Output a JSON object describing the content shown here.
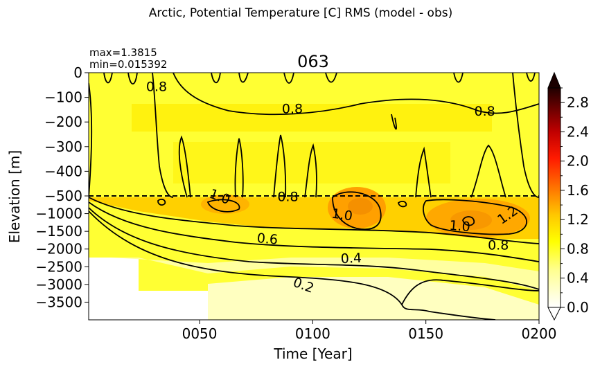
{
  "suptitle": "Arctic, Potential Temperature [C] RMS (model - obs)",
  "stats": {
    "max": "max=1.3815",
    "min": "min=0.015392"
  },
  "chart_data": {
    "type": "heatmap",
    "title": "063",
    "xlabel": "Time [Year]",
    "ylabel": "Elevation [m]",
    "xlim": [
      1,
      200
    ],
    "x_ticks": [
      "0050",
      "0100",
      "0150",
      "0200"
    ],
    "x_tick_values": [
      50,
      100,
      150,
      200
    ],
    "y_ticks_upper": [
      "0",
      "−100",
      "−200",
      "−300",
      "−400",
      "−500"
    ],
    "y_tick_values_upper": [
      0,
      -100,
      -200,
      -300,
      -400,
      -500
    ],
    "y_ticks_lower": [
      "−1000",
      "−1500",
      "−2000",
      "−2500",
      "−3000",
      "−3500"
    ],
    "y_tick_values_lower": [
      -1000,
      -1500,
      -2000,
      -2500,
      -3000,
      -3500
    ],
    "split_depth": -500,
    "colorbar": {
      "ticks": [
        "0.0",
        "0.4",
        "0.8",
        "1.2",
        "1.6",
        "2.0",
        "2.4",
        "2.8"
      ],
      "tick_values": [
        0.0,
        0.4,
        0.8,
        1.2,
        1.6,
        2.0,
        2.4,
        2.8
      ],
      "range": [
        0,
        3.0
      ],
      "extend": "both",
      "colormap": "hot_r"
    },
    "contour_labels": [
      {
        "text": "0.8",
        "x": 31,
        "depth": -55,
        "rot": 0
      },
      {
        "text": "0.8",
        "x": 91,
        "depth": -145,
        "rot": 0
      },
      {
        "text": "0.8",
        "x": 176,
        "depth": -155,
        "rot": 0
      },
      {
        "text": "1.0",
        "x": 59,
        "depth": -510,
        "rot": 20
      },
      {
        "text": "0.8",
        "x": 89,
        "depth": -510,
        "rot": 0
      },
      {
        "text": "1.0",
        "x": 113,
        "depth": -1020,
        "rot": 8
      },
      {
        "text": "1.0",
        "x": 165,
        "depth": -1340,
        "rot": 5
      },
      {
        "text": "1.2",
        "x": 186,
        "depth": -1030,
        "rot": -35
      },
      {
        "text": "0.6",
        "x": 80,
        "depth": -1700,
        "rot": 5
      },
      {
        "text": "0.8",
        "x": 182,
        "depth": -1880,
        "rot": 0
      },
      {
        "text": "0.4",
        "x": 117,
        "depth": -2250,
        "rot": -3
      },
      {
        "text": "0.2",
        "x": 96,
        "depth": -3010,
        "rot": 20
      }
    ]
  },
  "colors": {
    "light_yellow": "#ffffc0",
    "yellow": "#ffff20",
    "bright_yellow": "#ffee00",
    "orange": "#ffa500",
    "deep_orange": "#f28a00",
    "contour": "#000000"
  }
}
